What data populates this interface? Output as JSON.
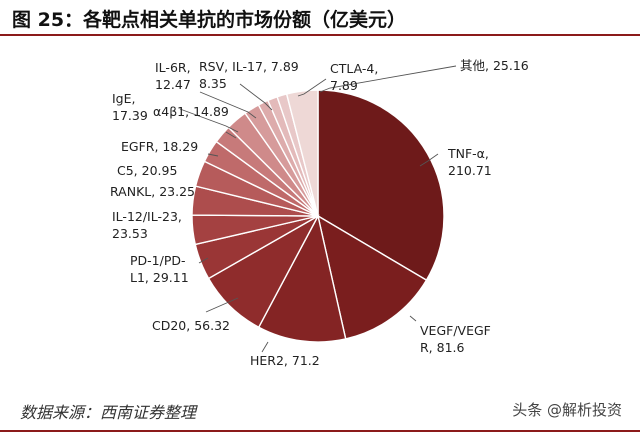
{
  "title": "图 25：各靶点相关单抗的市场份额（亿美元）",
  "source": "数据来源：西南证券整理",
  "watermark": "头条 @解析投资",
  "chart_data": {
    "type": "pie",
    "title": "图 25：各靶点相关单抗的市场份额（亿美元）",
    "unit": "亿美元",
    "slices": [
      {
        "label": "TNF-α",
        "value": 210.71,
        "text_lines": [
          "TNF-α,",
          "210.71"
        ],
        "color": "#6e1a1a"
      },
      {
        "label": "VEGF/VEGFR",
        "value": 81.6,
        "text_lines": [
          "VEGF/VEGF",
          "R, 81.6"
        ],
        "color": "#7a1e1e"
      },
      {
        "label": "HER2",
        "value": 71.2,
        "text_lines": [
          "HER2, 71.2"
        ],
        "color": "#842424"
      },
      {
        "label": "CD20",
        "value": 56.32,
        "text_lines": [
          "CD20, 56.32"
        ],
        "color": "#8f2c2c"
      },
      {
        "label": "PD-1/PD-L1",
        "value": 29.11,
        "text_lines": [
          "PD-1/PD-",
          "L1, 29.11"
        ],
        "color": "#9a3636"
      },
      {
        "label": "IL-12/IL-23",
        "value": 23.53,
        "text_lines": [
          "IL-12/IL-23,",
          "23.53"
        ],
        "color": "#a44141"
      },
      {
        "label": "RANKL",
        "value": 23.25,
        "text_lines": [
          "RANKL, 23.25"
        ],
        "color": "#ad4d4d"
      },
      {
        "label": "C5",
        "value": 20.95,
        "text_lines": [
          "C5, 20.95"
        ],
        "color": "#b65b5b"
      },
      {
        "label": "EGFR",
        "value": 18.29,
        "text_lines": [
          "EGFR, 18.29"
        ],
        "color": "#bf6a6a"
      },
      {
        "label": "α4β1",
        "value": 14.89,
        "text_lines": [
          "α4β1, 14.89"
        ],
        "color": "#c77a7a"
      },
      {
        "label": "IgE",
        "value": 17.39,
        "text_lines": [
          "IgE,",
          "17.39"
        ],
        "color": "#cf8a8a"
      },
      {
        "label": "IL-6R",
        "value": 12.47,
        "text_lines": [
          "IL-6R,",
          "12.47"
        ],
        "color": "#d69b9b"
      },
      {
        "label": "RSV",
        "value": 8.35,
        "text_lines": [
          "RSV, IL-17, 7.89",
          "8.35"
        ],
        "color": "#ddabab"
      },
      {
        "label": "IL-17",
        "value": 7.89,
        "text_lines": [],
        "color": "#e3baba"
      },
      {
        "label": "CTLA-4",
        "value": 7.89,
        "text_lines": [
          "CTLA-4,",
          "7.89"
        ],
        "color": "#e8c8c8"
      },
      {
        "label": "其他",
        "value": 25.16,
        "text_lines": [
          "其他, 25.16"
        ],
        "color": "#eed8d6"
      }
    ]
  }
}
